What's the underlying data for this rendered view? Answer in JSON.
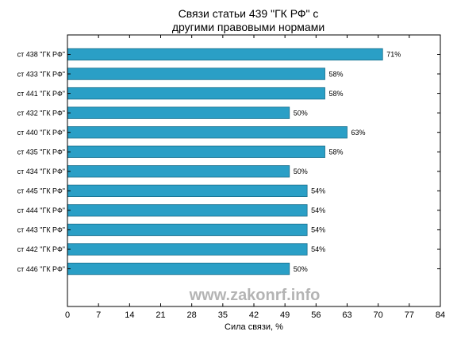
{
  "chart_data": {
    "type": "bar",
    "orientation": "horizontal",
    "title": [
      "Связи статьи 439 \"ГК РФ\" с",
      "другими правовыми нормами"
    ],
    "xlabel": "Сила связи, %",
    "categories": [
      "ст 438 \"ГК РФ\"",
      "ст 433 \"ГК РФ\"",
      "ст 441 \"ГК РФ\"",
      "ст 432 \"ГК РФ\"",
      "ст 440 \"ГК РФ\"",
      "ст 435 \"ГК РФ\"",
      "ст 434 \"ГК РФ\"",
      "ст 445 \"ГК РФ\"",
      "ст 444 \"ГК РФ\"",
      "ст 443 \"ГК РФ\"",
      "ст 442 \"ГК РФ\"",
      "ст 446 \"ГК РФ\""
    ],
    "values": [
      71,
      58,
      58,
      50,
      63,
      58,
      50,
      54,
      54,
      54,
      54,
      50
    ],
    "value_labels": [
      "71%",
      "58%",
      "58%",
      "50%",
      "63%",
      "58%",
      "50%",
      "54%",
      "54%",
      "54%",
      "54%",
      "50%"
    ],
    "xticks": [
      0,
      7,
      14,
      21,
      28,
      35,
      42,
      49,
      56,
      63,
      70,
      77,
      84
    ],
    "xlim": [
      0,
      84
    ],
    "grid": false,
    "bar_color": "#2a9fc6",
    "bar_edge_color": "#1a6f8c"
  },
  "watermark": "www.zakonrf.info"
}
